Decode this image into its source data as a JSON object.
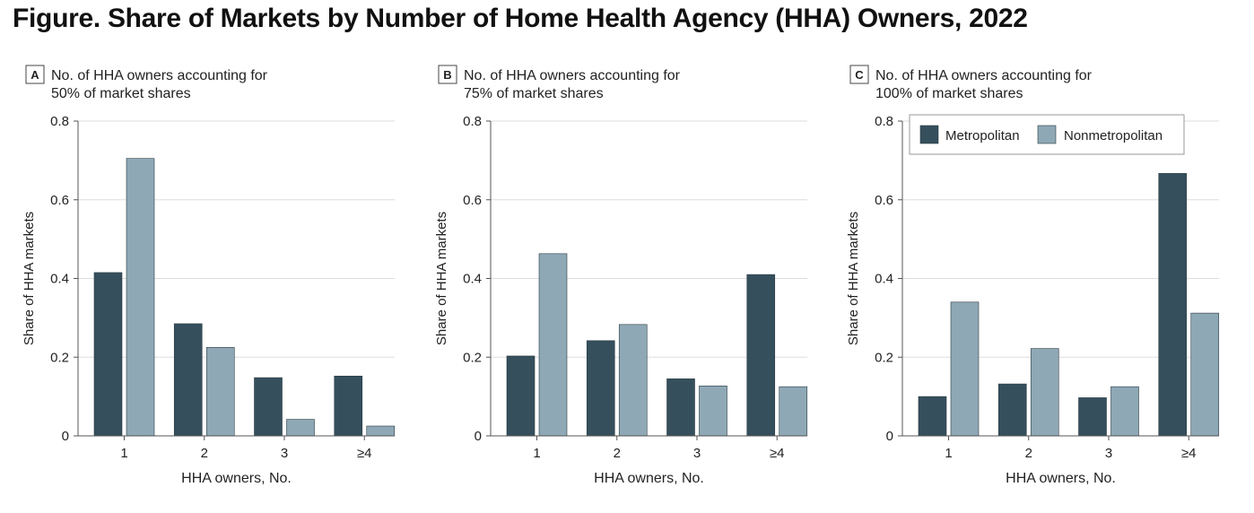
{
  "figure_title": "Figure.  Share of Markets by Number of Home Health Agency (HHA) Owners, 2022",
  "colors": {
    "metropolitan": "#364f5c",
    "nonmetropolitan": "#8fa8b5",
    "grid": "#dddddd",
    "axis": "#555555"
  },
  "chart_data": [
    {
      "type": "bar",
      "panel_letter": "A",
      "subtitle_line1": "No. of HHA owners accounting for",
      "subtitle_line2": "50% of market shares",
      "xlabel": "HHA owners, No.",
      "ylabel": "Share of HHA markets",
      "ylim": [
        0,
        0.8
      ],
      "yticks": [
        "0",
        "0.2",
        "0.4",
        "0.6",
        "0.8"
      ],
      "categories": [
        "1",
        "2",
        "3",
        "≥4"
      ],
      "series": [
        {
          "name": "Metropolitan",
          "values": [
            0.415,
            0.285,
            0.148,
            0.152
          ]
        },
        {
          "name": "Nonmetropolitan",
          "values": [
            0.705,
            0.225,
            0.042,
            0.025
          ]
        }
      ],
      "grid": true,
      "legend": null
    },
    {
      "type": "bar",
      "panel_letter": "B",
      "subtitle_line1": "No. of HHA owners accounting for",
      "subtitle_line2": "75% of market shares",
      "xlabel": "HHA owners, No.",
      "ylabel": "Share of HHA markets",
      "ylim": [
        0,
        0.8
      ],
      "yticks": [
        "0",
        "0.2",
        "0.4",
        "0.6",
        "0.8"
      ],
      "categories": [
        "1",
        "2",
        "3",
        "≥4"
      ],
      "series": [
        {
          "name": "Metropolitan",
          "values": [
            0.203,
            0.242,
            0.145,
            0.41
          ]
        },
        {
          "name": "Nonmetropolitan",
          "values": [
            0.463,
            0.283,
            0.127,
            0.125
          ]
        }
      ],
      "grid": true,
      "legend": null
    },
    {
      "type": "bar",
      "panel_letter": "C",
      "subtitle_line1": "No. of HHA owners accounting for",
      "subtitle_line2": "100% of market shares",
      "xlabel": "HHA owners, No.",
      "ylabel": "Share of HHA markets",
      "ylim": [
        0,
        0.8
      ],
      "yticks": [
        "0",
        "0.2",
        "0.4",
        "0.6",
        "0.8"
      ],
      "categories": [
        "1",
        "2",
        "3",
        "≥4"
      ],
      "series": [
        {
          "name": "Metropolitan",
          "values": [
            0.1,
            0.132,
            0.097,
            0.667
          ]
        },
        {
          "name": "Nonmetropolitan",
          "values": [
            0.34,
            0.222,
            0.125,
            0.312
          ]
        }
      ],
      "grid": true,
      "legend": "top"
    }
  ]
}
